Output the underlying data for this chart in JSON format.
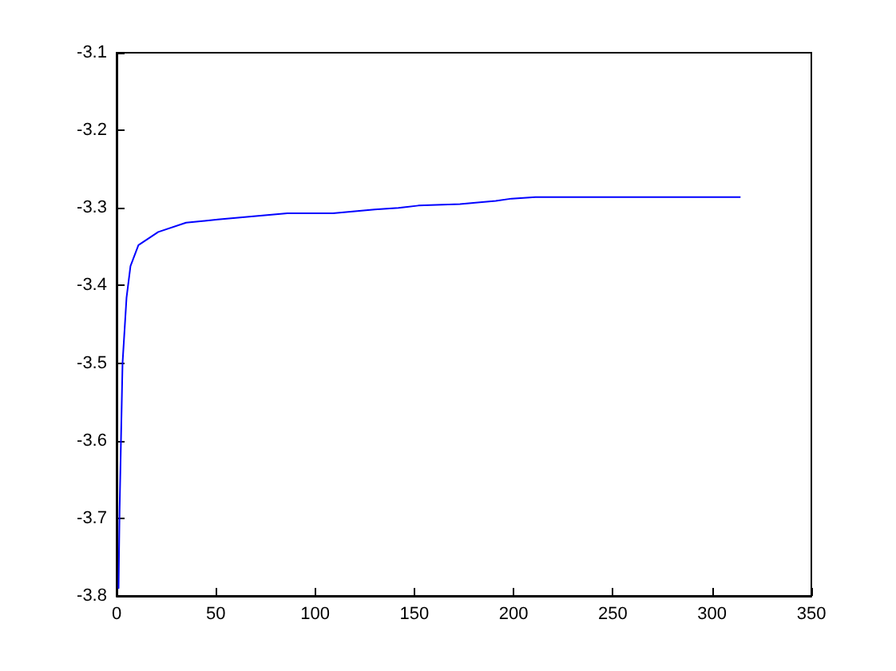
{
  "chart_data": {
    "type": "line",
    "x": [
      1,
      1.5,
      3,
      5,
      7,
      11,
      21,
      35,
      51,
      86,
      109,
      130,
      142,
      152,
      173,
      191,
      199,
      211,
      314
    ],
    "series": [
      {
        "color": "#0000ff",
        "values": [
          -3.79,
          -3.69,
          -3.5,
          -3.416,
          -3.375,
          -3.348,
          -3.331,
          -3.319,
          -3.315,
          -3.307,
          -3.307,
          -3.302,
          -3.3,
          -3.297,
          -3.295,
          -3.291,
          -3.288,
          -3.286,
          -3.286
        ]
      }
    ],
    "xlim": [
      0,
      350
    ],
    "xticks": [
      0,
      50,
      100,
      150,
      200,
      250,
      300,
      350
    ],
    "ylim": [
      -3.8,
      -3.1
    ],
    "yticks": [
      -3.8,
      -3.7,
      -3.6,
      -3.5,
      -3.4,
      -3.3,
      -3.2,
      -3.1
    ]
  }
}
